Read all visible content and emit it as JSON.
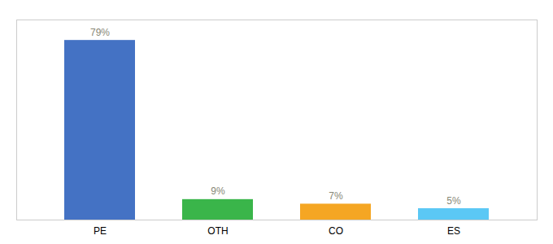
{
  "chart_data": {
    "type": "bar",
    "categories": [
      "PE",
      "OTH",
      "CO",
      "ES"
    ],
    "values": [
      79,
      9,
      7,
      5
    ],
    "value_labels": [
      "79%",
      "9%",
      "7%",
      "5%"
    ],
    "colors": [
      "#4472c4",
      "#3ab54a",
      "#f5a623",
      "#5bc8f5"
    ],
    "ylim": [
      0,
      88
    ],
    "data_labels": true,
    "tick_labels": "x",
    "grid": false
  }
}
